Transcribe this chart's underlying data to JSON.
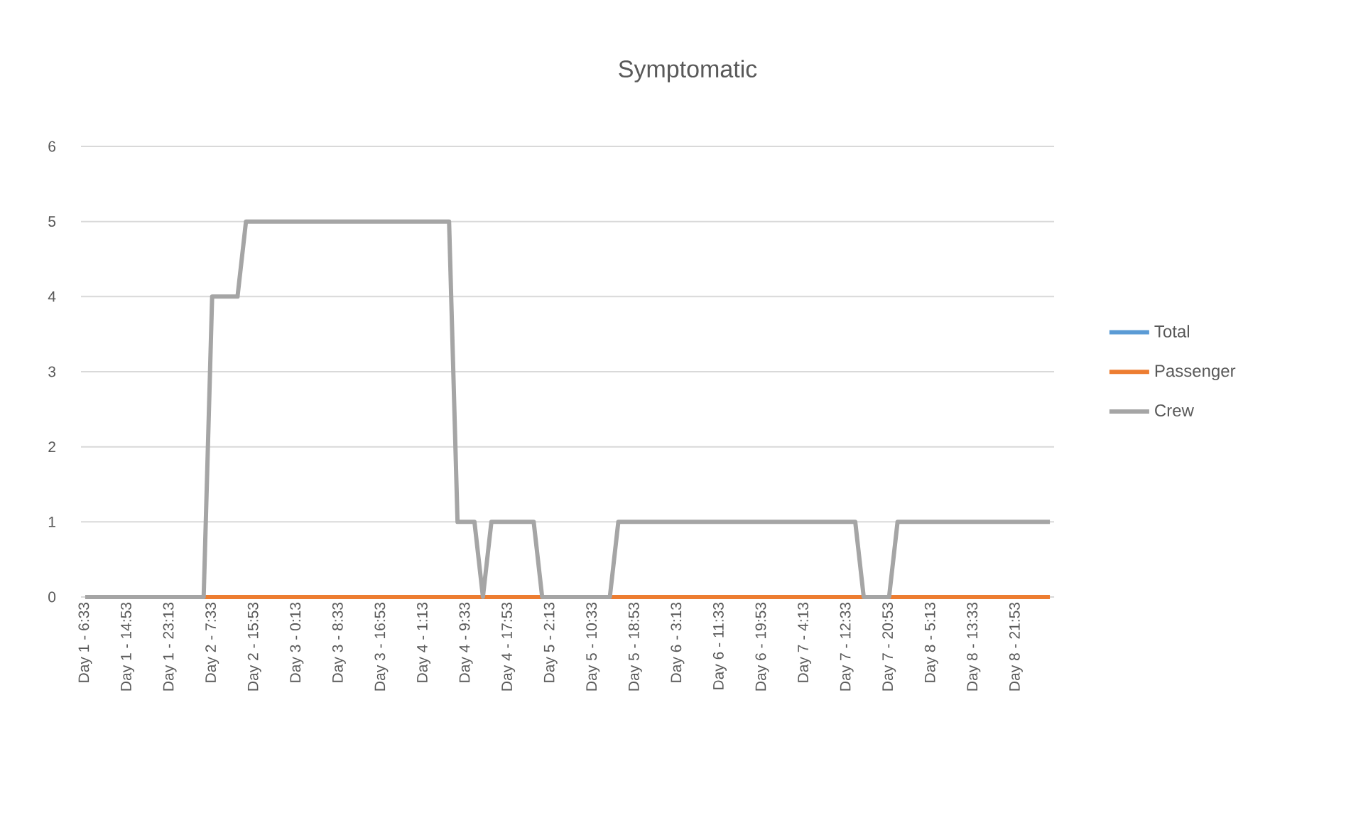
{
  "chart_data": {
    "type": "line",
    "title": "Symptomatic",
    "categories": [
      "Day 1 - 6:33",
      null,
      null,
      null,
      null,
      "Day 1 - 14:53",
      null,
      null,
      null,
      null,
      "Day 1 - 23:13",
      null,
      null,
      null,
      null,
      "Day 2 - 7:33",
      null,
      null,
      null,
      null,
      "Day 2 - 15:53",
      null,
      null,
      null,
      null,
      "Day 3 - 0:13",
      null,
      null,
      null,
      null,
      "Day 3 - 8:33",
      null,
      null,
      null,
      null,
      "Day 3 - 16:53",
      null,
      null,
      null,
      null,
      "Day 4 - 1:13",
      null,
      null,
      null,
      null,
      "Day 4 - 9:33",
      null,
      null,
      null,
      null,
      "Day 4 - 17:53",
      null,
      null,
      null,
      null,
      "Day 5 - 2:13",
      null,
      null,
      null,
      null,
      "Day 5 - 10:33",
      null,
      null,
      null,
      null,
      "Day 5 - 18:53",
      null,
      null,
      null,
      null,
      "Day 6 - 3:13",
      null,
      null,
      null,
      null,
      "Day 6 - 11:33",
      null,
      null,
      null,
      null,
      "Day 6 - 19:53",
      null,
      null,
      null,
      null,
      "Day 7 - 4:13",
      null,
      null,
      null,
      null,
      "Day 7 - 12:33",
      null,
      null,
      null,
      null,
      "Day 7 - 20:53",
      null,
      null,
      null,
      null,
      "Day 8 - 5:13",
      null,
      null,
      null,
      null,
      "Day 8 - 13:33",
      null,
      null,
      null,
      null,
      "Day 8 - 21:53",
      null,
      null,
      null,
      null
    ],
    "series": [
      {
        "name": "Total",
        "color": "#5b9bd5",
        "values": [
          null,
          null,
          null,
          null,
          null,
          null,
          null,
          null,
          null,
          null,
          null,
          null,
          null,
          null,
          null,
          null,
          null,
          null,
          null,
          null,
          null,
          null,
          null,
          null,
          null,
          null,
          null,
          null,
          null,
          null,
          null,
          null,
          null,
          null,
          null,
          null,
          null,
          null,
          null,
          null,
          null,
          null,
          null,
          null,
          null,
          null,
          null,
          null,
          null,
          null,
          null,
          null,
          null,
          null,
          null,
          null,
          null,
          null,
          null,
          null,
          null,
          null,
          null,
          null,
          null,
          null,
          null,
          null,
          null,
          null,
          null,
          null,
          null,
          null,
          null,
          null,
          null,
          null,
          null,
          null,
          null,
          null,
          null,
          null,
          null,
          null,
          null,
          null,
          null,
          null,
          null,
          null,
          null,
          null,
          null,
          null,
          null,
          null,
          null,
          null,
          null,
          null,
          null,
          null,
          null,
          null,
          null,
          null,
          null,
          null,
          null,
          null,
          null,
          null,
          null
        ]
      },
      {
        "name": "Passenger",
        "color": "#ed7d31",
        "values": [
          null,
          null,
          null,
          null,
          null,
          null,
          null,
          null,
          null,
          null,
          null,
          null,
          null,
          null,
          0,
          0,
          0,
          0,
          0,
          0,
          0,
          0,
          0,
          0,
          0,
          0,
          0,
          0,
          0,
          0,
          0,
          0,
          0,
          0,
          0,
          0,
          0,
          0,
          0,
          0,
          0,
          0,
          0,
          0,
          0,
          0,
          0,
          0,
          0,
          0,
          0,
          0,
          0,
          0,
          0,
          null,
          null,
          null,
          null,
          null,
          null,
          null,
          0,
          0,
          0,
          0,
          0,
          0,
          0,
          0,
          0,
          0,
          0,
          0,
          0,
          0,
          0,
          0,
          0,
          0,
          0,
          0,
          0,
          0,
          0,
          0,
          0,
          0,
          0,
          0,
          0,
          0,
          0,
          null,
          null,
          0,
          0,
          0,
          0,
          0,
          0,
          0,
          0,
          0,
          0,
          0,
          0,
          0,
          0,
          0,
          0,
          0,
          0,
          0,
          0
        ]
      },
      {
        "name": "Crew",
        "color": "#a5a5a5",
        "values": [
          0,
          0,
          0,
          0,
          0,
          0,
          0,
          0,
          0,
          0,
          0,
          0,
          0,
          0,
          0,
          4,
          4,
          4,
          4,
          5,
          5,
          5,
          5,
          5,
          5,
          5,
          5,
          5,
          5,
          5,
          5,
          5,
          5,
          5,
          5,
          5,
          5,
          5,
          5,
          5,
          5,
          5,
          5,
          5,
          1,
          1,
          1,
          0,
          1,
          1,
          1,
          1,
          1,
          1,
          0,
          0,
          0,
          0,
          0,
          0,
          0,
          0,
          0,
          1,
          1,
          1,
          1,
          1,
          1,
          1,
          1,
          1,
          1,
          1,
          1,
          1,
          1,
          1,
          1,
          1,
          1,
          1,
          1,
          1,
          1,
          1,
          1,
          1,
          1,
          1,
          1,
          1,
          0,
          0,
          0,
          0,
          1,
          1,
          1,
          1,
          1,
          1,
          1,
          1,
          1,
          1,
          1,
          1,
          1,
          1,
          1,
          1,
          1,
          1,
          1
        ]
      }
    ],
    "ylim": [
      0,
      6
    ],
    "yticks": [
      0,
      1,
      2,
      3,
      4,
      5,
      6
    ],
    "grid": "y",
    "legend": "right",
    "marker": "none"
  }
}
